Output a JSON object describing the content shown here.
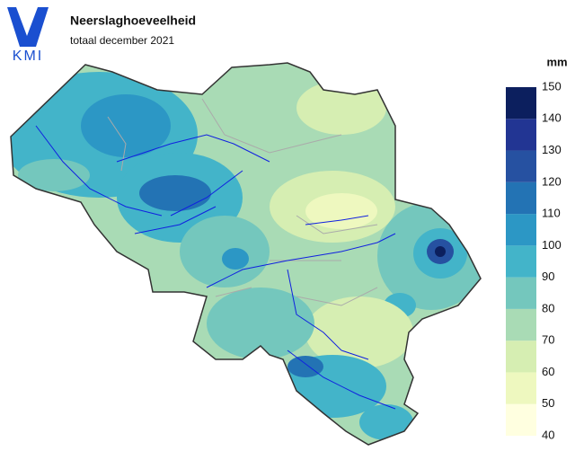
{
  "logo": "KMI",
  "title": "Neerslaghoeveelheid",
  "subtitle": "totaal december 2021",
  "legend": {
    "unit": "mm",
    "ticks": [
      40,
      50,
      60,
      70,
      80,
      90,
      100,
      110,
      120,
      130,
      140,
      150
    ],
    "colors": [
      "#ffffe0",
      "#eef8bf",
      "#d6eeb2",
      "#a9dbb5",
      "#74c7bd",
      "#43b4c9",
      "#2c97c5",
      "#2373b4",
      "#2651a1",
      "#223593",
      "#0c1f5e"
    ]
  }
}
